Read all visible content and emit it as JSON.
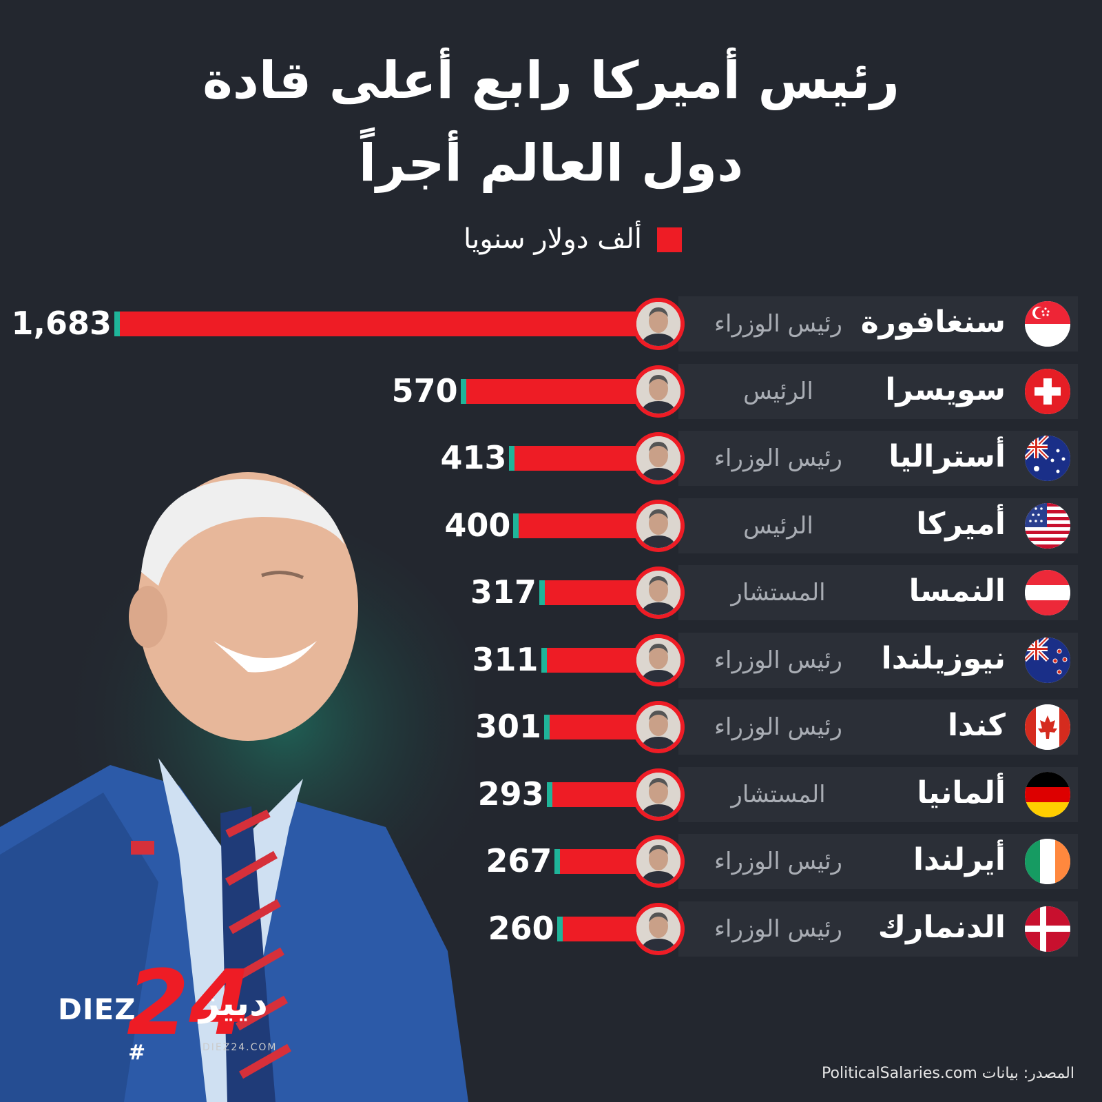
{
  "title_line1": "رئيس أميركا رابع أعلى قادة",
  "title_line2": "دول العالم أجراً",
  "legend_label": "ألف دولار سنويا",
  "source": "المصدر: بيانات PoliticalSalaries.com",
  "logo": {
    "latin": "DIEZ",
    "number": "24",
    "hash": "#",
    "arabic": "دييز",
    "url": "DIEZ24.COM"
  },
  "colors": {
    "bar": "#ee1c25",
    "tip": "#1fb59a",
    "background": "#23272f"
  },
  "chart_data": {
    "type": "bar",
    "orientation": "horizontal",
    "unit": "ألف دولار سنويا",
    "categories": [
      "سنغافورة",
      "سويسرا",
      "أستراليا",
      "أميركا",
      "النمسا",
      "نيوزيلندا",
      "كندا",
      "ألمانيا",
      "أيرلندا",
      "الدنمارك"
    ],
    "roles": [
      "رئيس الوزراء",
      "الرئيس",
      "رئيس الوزراء",
      "الرئيس",
      "المستشار",
      "رئيس الوزراء",
      "رئيس الوزراء",
      "المستشار",
      "رئيس الوزراء",
      "رئيس الوزراء"
    ],
    "values": [
      1683,
      570,
      413,
      400,
      317,
      311,
      301,
      293,
      267,
      260
    ],
    "value_labels": [
      "1,683",
      "570",
      "413",
      "400",
      "317",
      "311",
      "301",
      "293",
      "267",
      "260"
    ],
    "flags": [
      "singapore-flag-icon",
      "switzerland-flag-icon",
      "australia-flag-icon",
      "usa-flag-icon",
      "austria-flag-icon",
      "new-zealand-flag-icon",
      "canada-flag-icon",
      "germany-flag-icon",
      "ireland-flag-icon",
      "denmark-flag-icon"
    ]
  }
}
